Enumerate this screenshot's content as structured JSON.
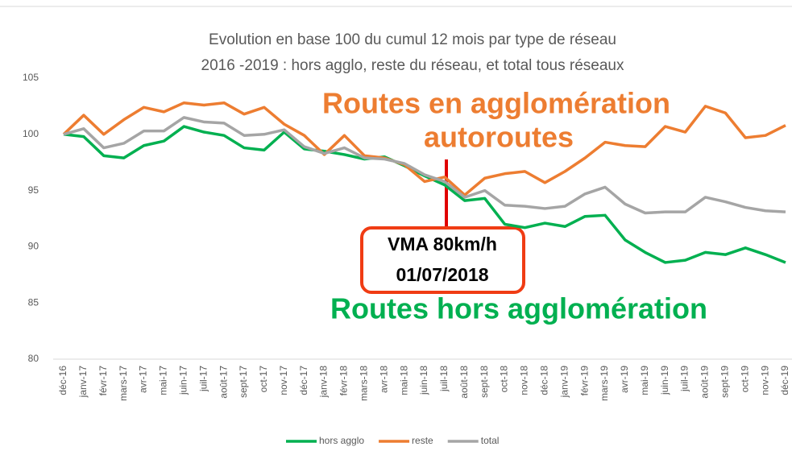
{
  "chart_data": {
    "type": "line",
    "title": [
      "Evolution en base 100 du cumul 12 mois par type de réseau",
      "2016 -2019 : hors agglo, reste du réseau, et total tous réseaux"
    ],
    "annotations": [
      "Routes en agglomération",
      "autoroutes",
      "Routes hors agglomération",
      "VMA 80km/h",
      "01/07/2018"
    ],
    "categories": [
      "déc-16",
      "janv-17",
      "févr-17",
      "mars-17",
      "avr-17",
      "mai-17",
      "juin-17",
      "juil-17",
      "août-17",
      "sept-17",
      "oct-17",
      "nov-17",
      "déc-17",
      "janv-18",
      "févr-18",
      "mars-18",
      "avr-18",
      "mai-18",
      "juin-18",
      "juil-18",
      "août-18",
      "sept-18",
      "oct-18",
      "nov-18",
      "déc-18",
      "janv-19",
      "févr-19",
      "mars-19",
      "avr-19",
      "mai-19",
      "juin-19",
      "juil-19",
      "août-19",
      "sept-19",
      "oct-19",
      "nov-19",
      "déc-19"
    ],
    "series": [
      {
        "name": "hors agglo",
        "color": "#00b050",
        "values": [
          100,
          99.8,
          98.1,
          97.9,
          99.0,
          99.4,
          100.7,
          100.2,
          99.9,
          98.8,
          98.6,
          100.2,
          98.7,
          98.5,
          98.2,
          97.8,
          98.0,
          97.2,
          96.3,
          95.5,
          94.1,
          94.3,
          92.0,
          91.7,
          92.1,
          91.8,
          92.7,
          92.8,
          90.6,
          89.5,
          88.6,
          88.8,
          89.5,
          89.3,
          89.9,
          89.3,
          88.6
        ]
      },
      {
        "name": "reste",
        "color": "#ed7d31",
        "values": [
          100,
          101.7,
          100,
          101.3,
          102.4,
          102.0,
          102.8,
          102.6,
          102.8,
          101.8,
          102.4,
          100.9,
          99.9,
          98.2,
          99.9,
          98.1,
          97.9,
          97.3,
          95.8,
          96.2,
          94.6,
          96.1,
          96.5,
          96.7,
          95.7,
          96.7,
          97.9,
          99.3,
          99.0,
          98.9,
          100.7,
          100.2,
          102.5,
          101.9,
          99.7,
          99.9,
          100.8
        ]
      },
      {
        "name": "total",
        "color": "#a5a5a5",
        "values": [
          100,
          100.5,
          98.8,
          99.2,
          100.3,
          100.3,
          101.5,
          101.1,
          101.0,
          99.9,
          100.0,
          100.4,
          98.9,
          98.3,
          98.8,
          97.9,
          97.8,
          97.4,
          96.4,
          95.8,
          94.4,
          95.0,
          93.7,
          93.6,
          93.4,
          93.6,
          94.7,
          95.3,
          93.8,
          93.0,
          93.1,
          93.1,
          94.4,
          94.0,
          93.5,
          93.2,
          93.1
        ]
      }
    ],
    "ylim": [
      80,
      105
    ],
    "yticks": [
      80,
      85,
      90,
      95,
      100,
      105
    ],
    "grid": false
  }
}
